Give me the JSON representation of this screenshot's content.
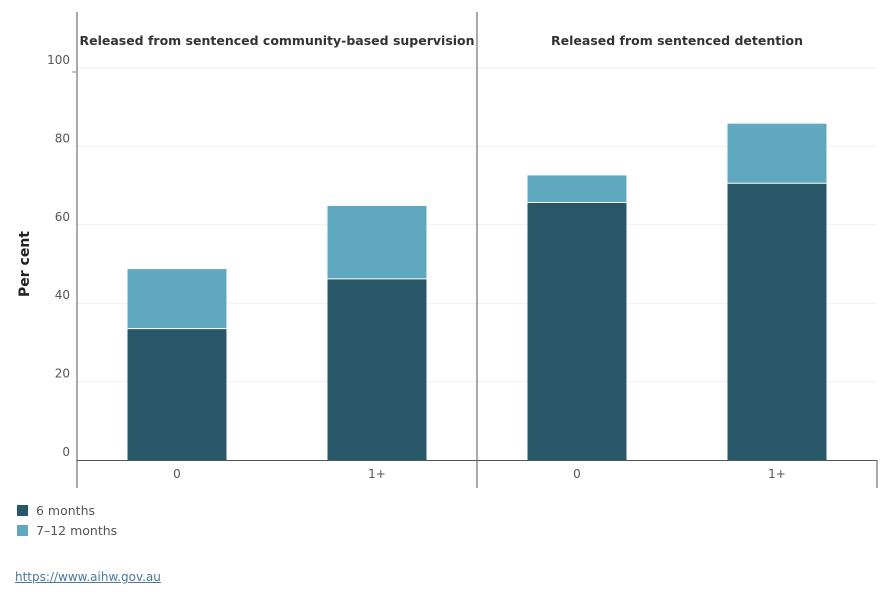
{
  "chart_data": {
    "type": "bar",
    "stacked": true,
    "ylabel": "Per cent",
    "ylim": [
      0,
      100
    ],
    "yticks": [
      0,
      20,
      40,
      60,
      80,
      100
    ],
    "grid": true,
    "legend_position": "bottom-left",
    "colors": {
      "6 months": "#285868",
      "7–12 months": "#5fa8bf"
    },
    "panels": [
      {
        "title": "Released from sentenced community-based supervision",
        "categories": [
          "0",
          "1+"
        ],
        "series": [
          {
            "name": "6 months",
            "values": [
              33.5,
              46.2
            ]
          },
          {
            "name": "7–12 months",
            "values": [
              15.2,
              18.6
            ]
          }
        ]
      },
      {
        "title": "Released from sentenced detention",
        "categories": [
          "0",
          "1+"
        ],
        "series": [
          {
            "name": "6 months",
            "values": [
              65.7,
              70.6
            ]
          },
          {
            "name": "7–12 months",
            "values": [
              6.9,
              15.2
            ]
          }
        ]
      }
    ]
  },
  "legend": {
    "items": [
      {
        "label": "6 months",
        "color": "#285868"
      },
      {
        "label": "7–12 months",
        "color": "#5fa8bf"
      }
    ]
  },
  "footer": {
    "source_link": "https://www.aihw.gov.au"
  }
}
